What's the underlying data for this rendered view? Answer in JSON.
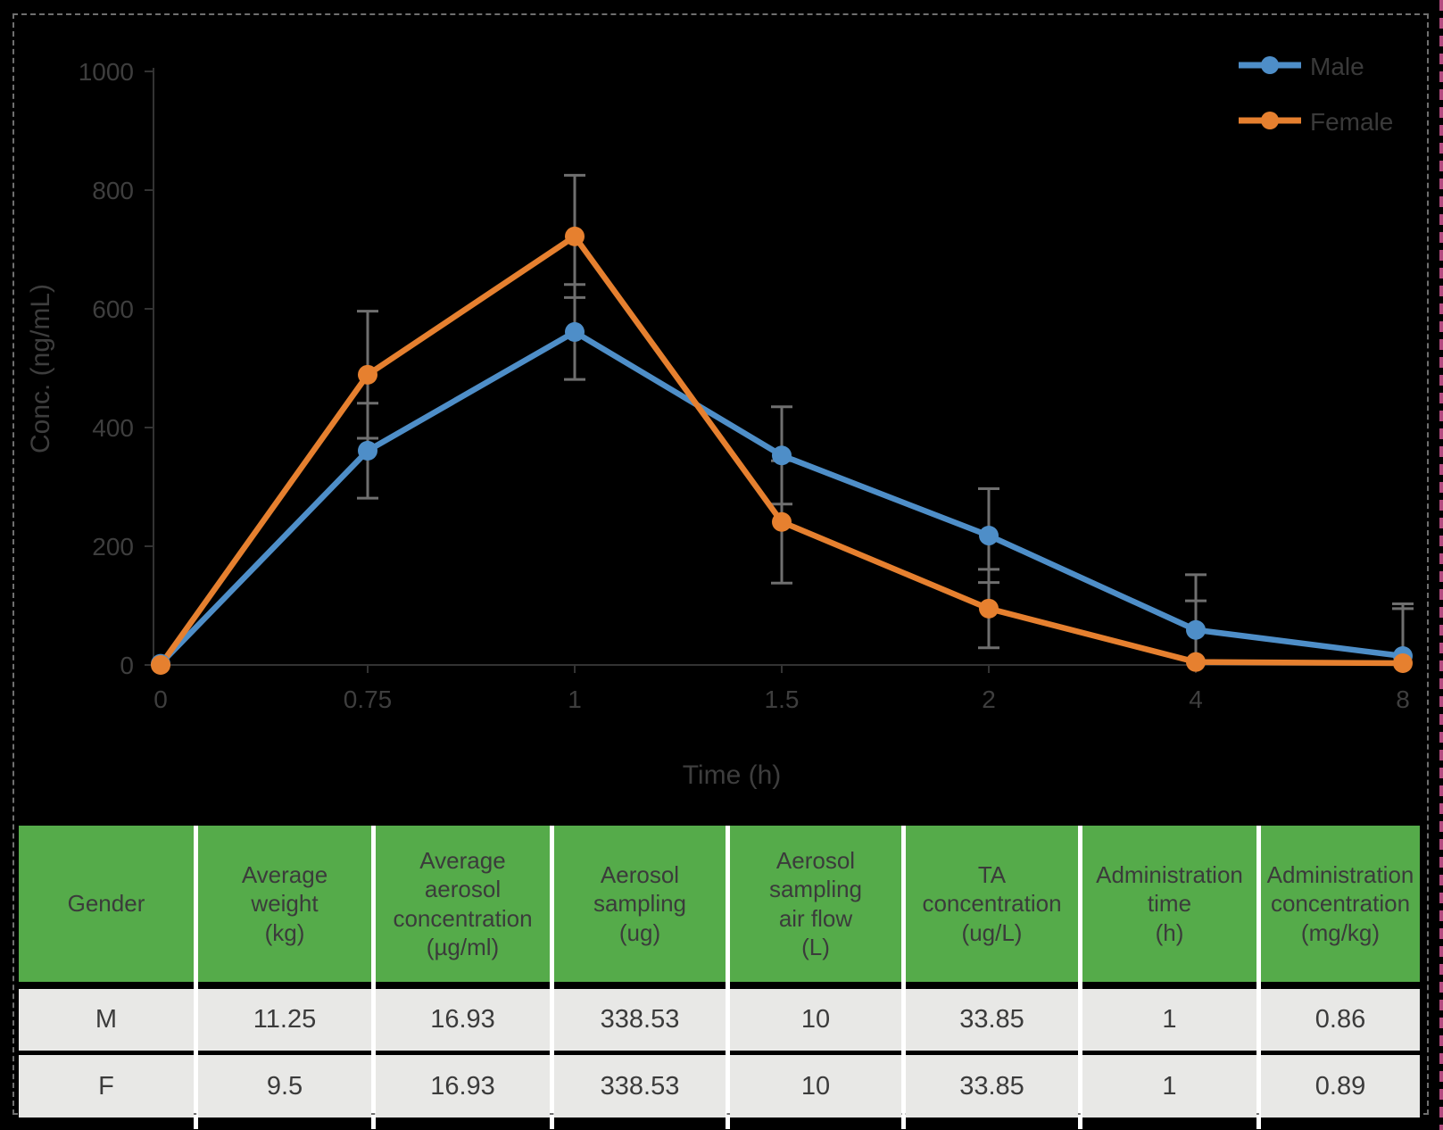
{
  "chart_data": {
    "type": "line",
    "title": "",
    "xlabel": "Time (h)",
    "ylabel": "Conc. (ng/mL)",
    "categories": [
      "0",
      "0.75",
      "1",
      "1.5",
      "2",
      "4",
      "8"
    ],
    "y_ticks": [
      "0",
      "200",
      "400",
      "600",
      "800",
      "1000"
    ],
    "ylim": [
      0,
      1000
    ],
    "grid": false,
    "legend_position": "top-right",
    "series": [
      {
        "name": "Male",
        "color": "#4E8EC8",
        "values": [
          2,
          361,
          561,
          353,
          218,
          59,
          15
        ],
        "errors": [
          0,
          80,
          80,
          82,
          79,
          93,
          88
        ]
      },
      {
        "name": "Female",
        "color": "#E6802F",
        "values": [
          0,
          489,
          722,
          241,
          95,
          5,
          3
        ],
        "errors": [
          0,
          107,
          103,
          103,
          66,
          103,
          92
        ]
      }
    ]
  },
  "table": {
    "headers": [
      "Gender",
      "Average\nweight\n(kg)",
      "Average\naerosol\nconcentration\n(µg/ml)",
      "Aerosol\nsampling\n(ug)",
      "Aerosol\nsampling\nair flow\n(L)",
      "TA\nconcentration\n(ug/L)",
      "Administration\ntime\n(h)",
      "Administration\nconcentration\n(mg/kg)"
    ],
    "rows": [
      [
        "M",
        "11.25",
        "16.93",
        "338.53",
        "10",
        "33.85",
        "1",
        "0.86"
      ],
      [
        "F",
        "9.5",
        "16.93",
        "338.53",
        "10",
        "33.85",
        "1",
        "0.89"
      ]
    ]
  },
  "colors": {
    "background": "#000000",
    "selection_border": "#6F6F6F",
    "edge_accent": "#B44B80",
    "axis": "#333333",
    "error_bar": "#6F6F6F",
    "text": "#3E3E3E",
    "table_header_bg": "#55AB4A",
    "table_row_bg": "#E8E8E6"
  }
}
